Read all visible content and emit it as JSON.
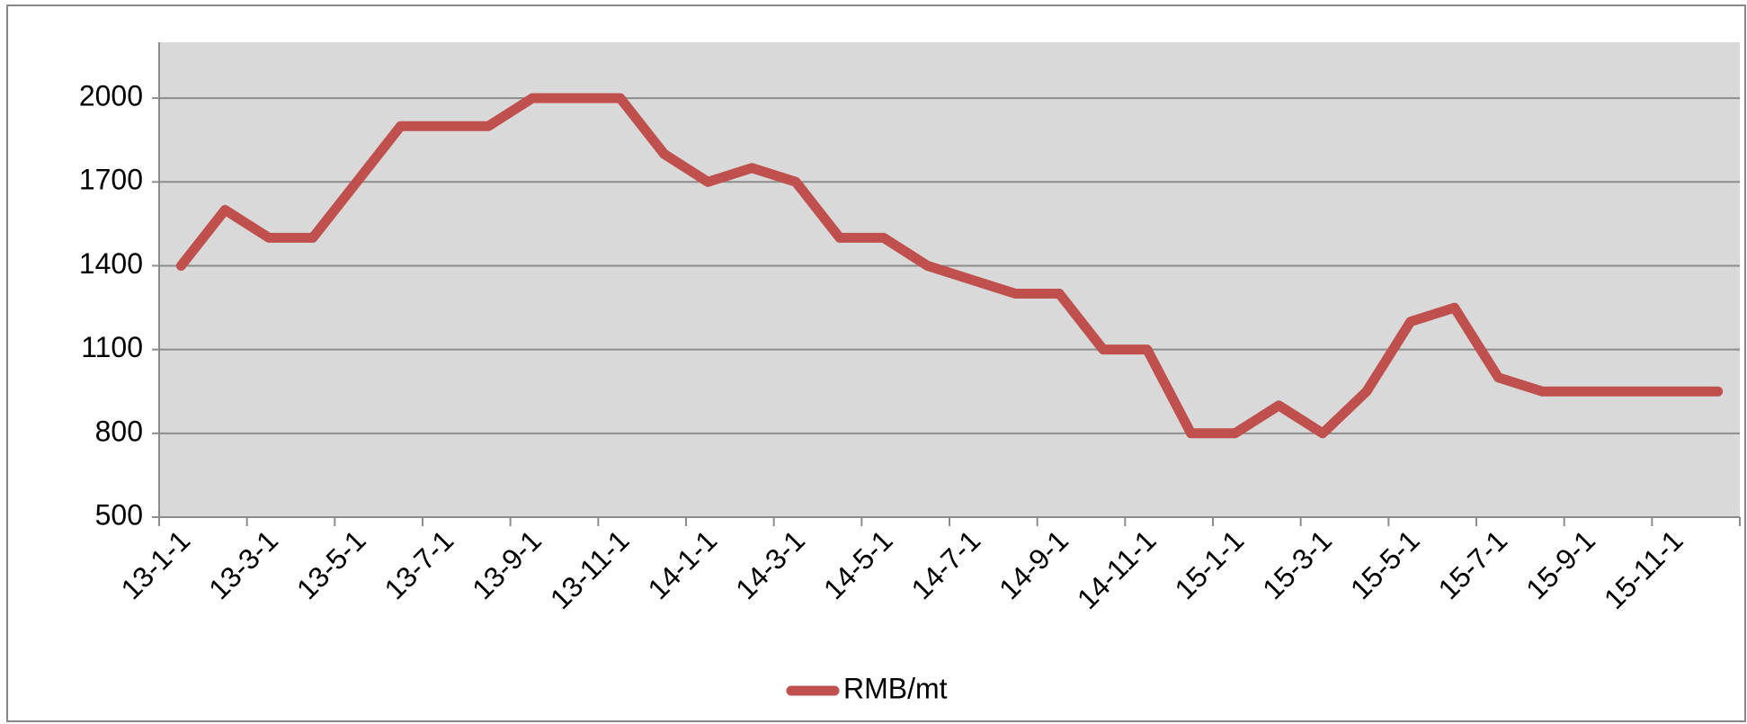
{
  "chart_data": {
    "type": "line",
    "categories": [
      "13-1-1",
      null,
      "13-3-1",
      null,
      "13-5-1",
      null,
      "13-7-1",
      null,
      "13-9-1",
      null,
      "13-11-1",
      null,
      "14-1-1",
      null,
      "14-3-1",
      null,
      "14-5-1",
      null,
      "14-7-1",
      null,
      "14-9-1",
      null,
      "14-11-1",
      null,
      "15-1-1",
      null,
      "15-3-1",
      null,
      "15-5-1",
      null,
      "15-7-1",
      null,
      "15-9-1",
      null,
      "15-11-1",
      null
    ],
    "series": [
      {
        "name": "RMB/mt",
        "color": "#c0504d",
        "values": [
          1400,
          1600,
          1500,
          1500,
          1700,
          1900,
          1900,
          1900,
          2000,
          2000,
          2000,
          1800,
          1700,
          1750,
          1700,
          1500,
          1500,
          1400,
          1350,
          1300,
          1300,
          1100,
          1100,
          800,
          800,
          900,
          800,
          950,
          1200,
          1250,
          1000,
          950,
          950,
          950,
          950,
          950
        ]
      }
    ],
    "ylim": [
      500,
      2200
    ],
    "yticks": [
      500,
      800,
      1100,
      1400,
      1700,
      2000
    ],
    "grid": true,
    "legend": "bottom",
    "plot_background": "#d9d9d9"
  }
}
